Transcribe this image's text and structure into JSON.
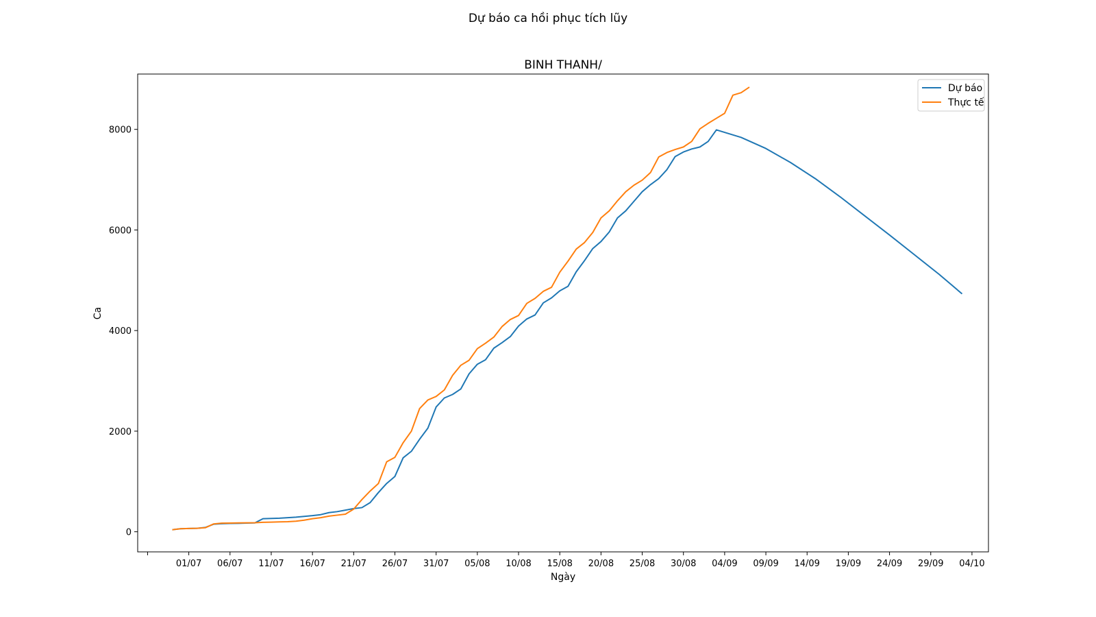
{
  "chart_data": {
    "type": "line",
    "suptitle": "Dự báo ca hồi phục tích lũy",
    "title": "BINH THANH/",
    "xlabel": "Ngày",
    "ylabel": "Ca",
    "ylim": [
      -400,
      9100
    ],
    "yticks": [
      0,
      2000,
      4000,
      6000,
      8000
    ],
    "xlim_day": [
      -4.2,
      99
    ],
    "xtick_days": [
      -3,
      2,
      7,
      12,
      17,
      22,
      27,
      32,
      37,
      42,
      47,
      52,
      57,
      62,
      67,
      72,
      77,
      82,
      87,
      92,
      97
    ],
    "xtick_labels": [
      "",
      "01/07",
      "06/07",
      "11/07",
      "16/07",
      "21/07",
      "26/07",
      "31/07",
      "05/08",
      "10/08",
      "15/08",
      "20/08",
      "25/08",
      "30/08",
      "04/09",
      "09/09",
      "14/09",
      "19/09",
      "24/09",
      "29/09",
      "04/10"
    ],
    "x_origin_date": "2021-06-29",
    "legend_position": "upper right",
    "grid": false,
    "series": [
      {
        "name": "Dự báo",
        "color": "#1f77b4",
        "points": [
          [
            0,
            40
          ],
          [
            1,
            60
          ],
          [
            2,
            65
          ],
          [
            3,
            68
          ],
          [
            4,
            85
          ],
          [
            5,
            150
          ],
          [
            6,
            160
          ],
          [
            7,
            165
          ],
          [
            8,
            168
          ],
          [
            9,
            172
          ],
          [
            10,
            175
          ],
          [
            11,
            260
          ],
          [
            12,
            265
          ],
          [
            13,
            270
          ],
          [
            14,
            280
          ],
          [
            15,
            290
          ],
          [
            16,
            305
          ],
          [
            17,
            320
          ],
          [
            18,
            340
          ],
          [
            19,
            380
          ],
          [
            20,
            400
          ],
          [
            21,
            430
          ],
          [
            22,
            460
          ],
          [
            23,
            480
          ],
          [
            24,
            580
          ],
          [
            25,
            780
          ],
          [
            26,
            960
          ],
          [
            27,
            1100
          ],
          [
            28,
            1470
          ],
          [
            29,
            1600
          ],
          [
            30,
            1840
          ],
          [
            31,
            2060
          ],
          [
            32,
            2480
          ],
          [
            33,
            2660
          ],
          [
            34,
            2730
          ],
          [
            35,
            2840
          ],
          [
            36,
            3140
          ],
          [
            37,
            3330
          ],
          [
            38,
            3420
          ],
          [
            39,
            3650
          ],
          [
            40,
            3760
          ],
          [
            41,
            3880
          ],
          [
            42,
            4090
          ],
          [
            43,
            4230
          ],
          [
            44,
            4310
          ],
          [
            45,
            4550
          ],
          [
            46,
            4650
          ],
          [
            47,
            4790
          ],
          [
            48,
            4880
          ],
          [
            49,
            5170
          ],
          [
            50,
            5390
          ],
          [
            51,
            5630
          ],
          [
            52,
            5770
          ],
          [
            53,
            5960
          ],
          [
            54,
            6240
          ],
          [
            55,
            6380
          ],
          [
            56,
            6570
          ],
          [
            57,
            6760
          ],
          [
            58,
            6900
          ],
          [
            59,
            7020
          ],
          [
            60,
            7200
          ],
          [
            61,
            7460
          ],
          [
            62,
            7550
          ],
          [
            63,
            7610
          ],
          [
            64,
            7650
          ],
          [
            65,
            7760
          ],
          [
            66,
            7990
          ],
          [
            69,
            7840
          ],
          [
            72,
            7620
          ],
          [
            75,
            7340
          ],
          [
            78,
            7020
          ],
          [
            81,
            6660
          ],
          [
            84,
            6280
          ],
          [
            87,
            5900
          ],
          [
            90,
            5510
          ],
          [
            93,
            5120
          ],
          [
            95.8,
            4730
          ]
        ]
      },
      {
        "name": "Thực tế",
        "color": "#ff7f0e",
        "points": [
          [
            0,
            40
          ],
          [
            1,
            60
          ],
          [
            2,
            65
          ],
          [
            3,
            68
          ],
          [
            4,
            80
          ],
          [
            5,
            155
          ],
          [
            6,
            170
          ],
          [
            7,
            172
          ],
          [
            8,
            175
          ],
          [
            9,
            178
          ],
          [
            10,
            180
          ],
          [
            11,
            188
          ],
          [
            12,
            192
          ],
          [
            13,
            196
          ],
          [
            14,
            200
          ],
          [
            15,
            210
          ],
          [
            16,
            230
          ],
          [
            17,
            260
          ],
          [
            18,
            280
          ],
          [
            19,
            310
          ],
          [
            20,
            330
          ],
          [
            21,
            350
          ],
          [
            22,
            450
          ],
          [
            23,
            640
          ],
          [
            24,
            810
          ],
          [
            25,
            960
          ],
          [
            26,
            1390
          ],
          [
            27,
            1480
          ],
          [
            28,
            1770
          ],
          [
            29,
            2000
          ],
          [
            30,
            2450
          ],
          [
            31,
            2620
          ],
          [
            32,
            2690
          ],
          [
            33,
            2820
          ],
          [
            34,
            3110
          ],
          [
            35,
            3310
          ],
          [
            36,
            3410
          ],
          [
            37,
            3640
          ],
          [
            38,
            3750
          ],
          [
            39,
            3870
          ],
          [
            40,
            4080
          ],
          [
            41,
            4220
          ],
          [
            42,
            4300
          ],
          [
            43,
            4540
          ],
          [
            44,
            4640
          ],
          [
            45,
            4780
          ],
          [
            46,
            4860
          ],
          [
            47,
            5160
          ],
          [
            48,
            5380
          ],
          [
            49,
            5620
          ],
          [
            50,
            5750
          ],
          [
            51,
            5950
          ],
          [
            52,
            6240
          ],
          [
            53,
            6380
          ],
          [
            54,
            6580
          ],
          [
            55,
            6760
          ],
          [
            56,
            6890
          ],
          [
            57,
            6990
          ],
          [
            58,
            7140
          ],
          [
            59,
            7450
          ],
          [
            60,
            7540
          ],
          [
            61,
            7600
          ],
          [
            62,
            7650
          ],
          [
            63,
            7760
          ],
          [
            64,
            8010
          ],
          [
            65,
            8120
          ],
          [
            66,
            8220
          ],
          [
            67,
            8320
          ],
          [
            68,
            8680
          ],
          [
            69,
            8730
          ],
          [
            70,
            8840
          ]
        ]
      }
    ]
  }
}
